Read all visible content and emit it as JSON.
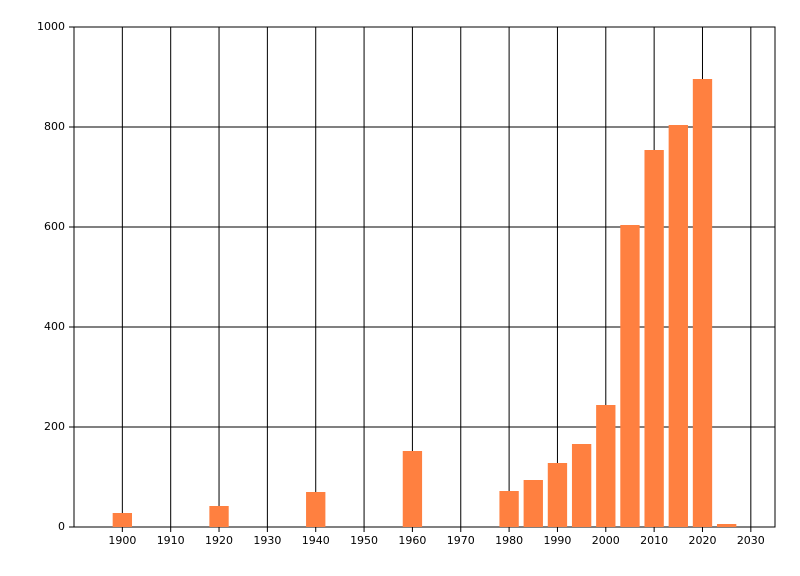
{
  "chart_data": {
    "type": "bar",
    "x": [
      1900,
      1920,
      1940,
      1960,
      1980,
      1985,
      1990,
      1995,
      2000,
      2005,
      2010,
      2015,
      2020,
      2025
    ],
    "values": [
      28,
      42,
      70,
      152,
      72,
      94,
      128,
      166,
      244,
      604,
      754,
      804,
      896,
      6
    ],
    "color": "#ff8040",
    "xlim": [
      1890,
      2035
    ],
    "xticks": [
      1900,
      1910,
      1920,
      1930,
      1940,
      1950,
      1960,
      1970,
      1980,
      1990,
      2000,
      2010,
      2020,
      2030
    ],
    "ylim": [
      0,
      1000
    ],
    "yticks": [
      0,
      200,
      400,
      600,
      800,
      1000
    ],
    "grid": true
  }
}
